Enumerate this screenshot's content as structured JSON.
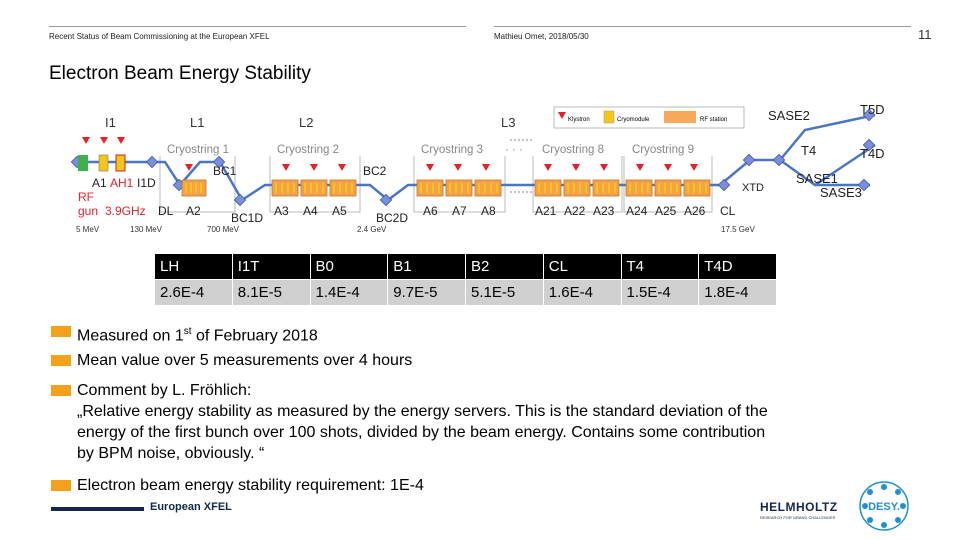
{
  "header": {
    "left_text": "Recent Status of Beam Commissioning at the European XFEL",
    "right_text": "Mathieu Omet, 2018/05/30",
    "page_number": "11"
  },
  "title": "Electron Beam Energy Stability",
  "diagram": {
    "legend": {
      "klystron": "Klystron",
      "cryomodule": "Cryomodule",
      "rf_station": "RF station"
    },
    "sections": {
      "l1": "L1",
      "l2": "L2",
      "l3": "L3",
      "i1": "I1",
      "cryostring1": "Cryostring 1",
      "cryostring2": "Cryostring 2",
      "cryostring3": "Cryostring 3",
      "cryostring8": "Cryostring 8",
      "cryostring9": "Cryostring 9",
      "dots": "· · ·"
    },
    "components": {
      "a1": "A1",
      "ah1": "AH1",
      "i1d": "I1D",
      "rf": "RF",
      "gun": "gun",
      "freq": "3.9GHz",
      "dl": "DL",
      "a2": "A2",
      "bc1": "BC1",
      "bc1d": "BC1D",
      "a3": "A3",
      "a4": "A4",
      "a5": "A5",
      "bc2": "BC2",
      "bc2d": "BC2D",
      "a6": "A6",
      "a7": "A7",
      "a8": "A8",
      "a21": "A21",
      "a22": "A22",
      "a23": "A23",
      "a24": "A24",
      "a25": "A25",
      "a26": "A26",
      "cl": "CL",
      "sase1": "SASE1",
      "sase2": "SASE2",
      "sase3": "SASE3",
      "t4": "T4",
      "t4d": "T4D",
      "t5d": "T5D",
      "xtd": "XTD"
    },
    "energies": {
      "e1": "5 MeV",
      "e2": "130 MeV",
      "e3": "700 MeV",
      "e4": "2.4 GeV",
      "e5": "17.5 GeV"
    }
  },
  "table": {
    "headers": [
      "LH",
      "I1T",
      "B0",
      "B1",
      "B2",
      "CL",
      "T4",
      "T4D"
    ],
    "values": [
      "2.6E-4",
      "8.1E-5",
      "1.4E-4",
      "9.7E-5",
      "5.1E-5",
      "1.6E-4",
      "1.5E-4",
      "1.8E-4"
    ]
  },
  "bullets": {
    "b1_pre": "Measured on 1",
    "b1_sup": "st",
    "b1_post": " of February 2018",
    "b2": "Mean value over 5 measurements over 4 hours",
    "b3_line1": "Comment by L. Fröhlich:",
    "b3_line2": "„Relative energy stability as measured by the energy servers. This is the standard deviation of the",
    "b3_line3": "energy of the first bunch over 100 shots, divided by the beam energy. Contains some contribution",
    "b3_line4": "by BPM noise, obviously. “",
    "b4": "Electron beam energy stability requirement: 1E-4"
  },
  "footer": {
    "xfel_text": "European XFEL",
    "helmholtz_name": "HELMHOLTZ",
    "helmholtz_tagline": "RESEARCH FOR GRAND CHALLENGES",
    "desy_text": "DESY."
  },
  "colors": {
    "accent": "#f3a01a",
    "navy": "#13274d",
    "beamline": "#4a76c6",
    "klystron": "#e8202a"
  }
}
